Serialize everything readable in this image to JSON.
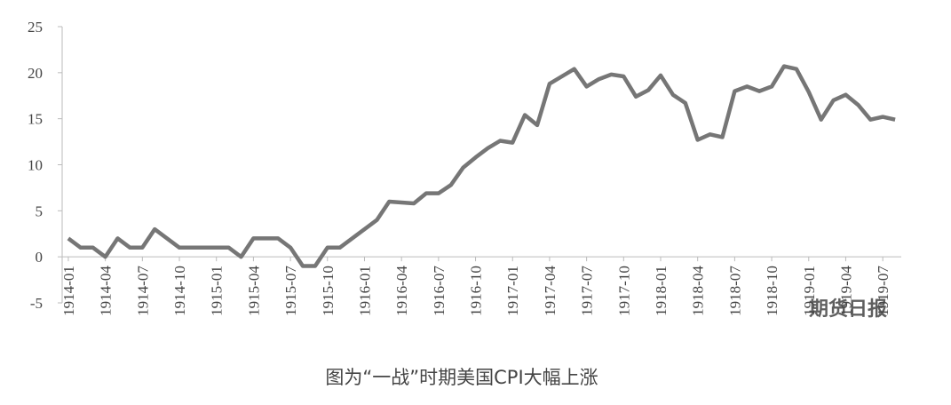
{
  "chart_data": {
    "type": "line",
    "categories": [
      "1914-01",
      null,
      null,
      "1914-04",
      null,
      null,
      "1914-07",
      null,
      null,
      "1914-10",
      null,
      null,
      "1915-01",
      null,
      null,
      "1915-04",
      null,
      null,
      "1915-07",
      null,
      null,
      "1915-10",
      null,
      null,
      "1916-01",
      null,
      null,
      "1916-04",
      null,
      null,
      "1916-07",
      null,
      null,
      "1916-10",
      null,
      null,
      "1917-01",
      null,
      null,
      "1917-04",
      null,
      null,
      "1917-07",
      null,
      null,
      "1917-10",
      null,
      null,
      "1918-01",
      null,
      null,
      "1918-04",
      null,
      null,
      "1918-07",
      null,
      null,
      "1918-10",
      null,
      null,
      "1919-01",
      null,
      null,
      "1919-04",
      null,
      null,
      "1919-07",
      null
    ],
    "values": [
      2,
      1,
      1,
      0,
      2,
      1,
      1,
      3,
      2,
      1,
      1,
      1,
      1,
      1,
      0,
      2,
      2,
      2,
      1,
      -1,
      -1,
      1,
      1,
      2,
      3,
      4,
      6,
      5.9,
      5.8,
      6.9,
      6.9,
      7.8,
      9.7,
      10.8,
      11.8,
      12.6,
      12.4,
      15.4,
      14.3,
      18.8,
      19.6,
      20.4,
      18.5,
      19.3,
      19.8,
      19.6,
      17.4,
      18.1,
      19.7,
      17.6,
      16.7,
      12.7,
      13.3,
      13.0,
      18.0,
      18.5,
      18.0,
      18.5,
      20.7,
      20.4,
      17.9,
      14.9,
      17.0,
      17.6,
      16.5,
      14.9,
      15.2,
      14.9
    ],
    "color": "#767676",
    "ylim": [
      -5,
      25
    ],
    "yticks": [
      -5,
      0,
      5,
      10,
      15,
      20,
      25
    ],
    "caption": "图为“一战”时期美国CPI大幅上涨",
    "watermark": "期货日报"
  }
}
